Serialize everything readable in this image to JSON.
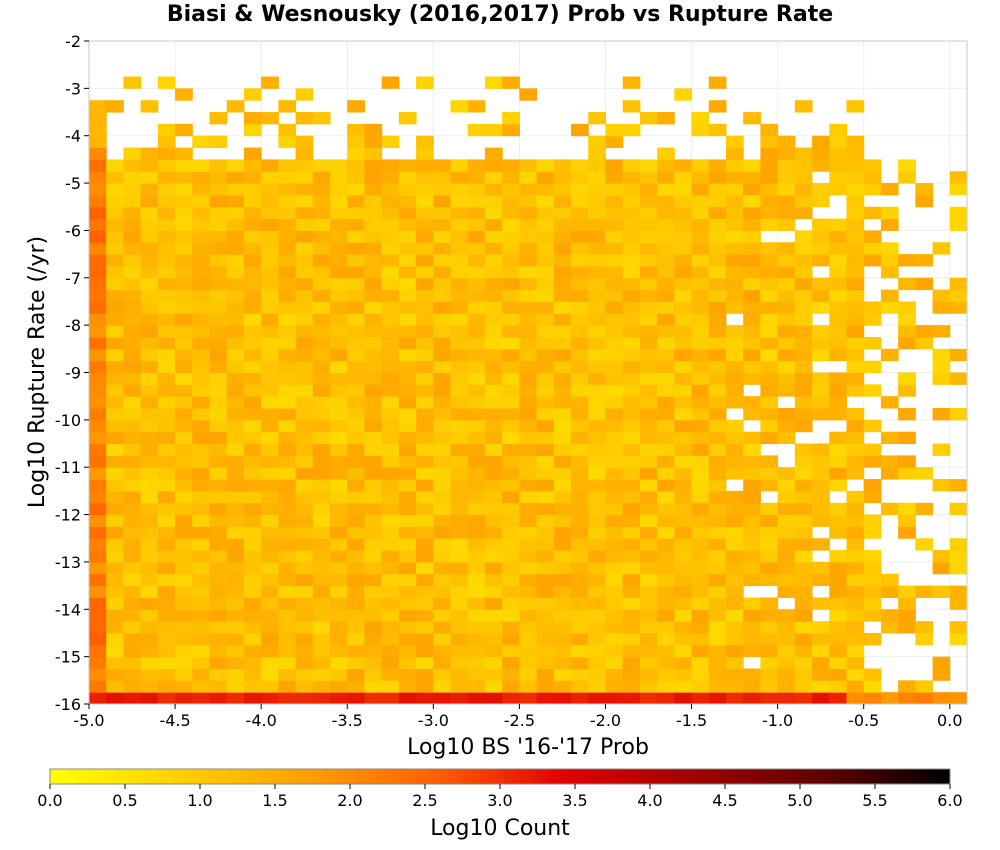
{
  "chart_data": {
    "type": "heatmap",
    "title": "Biasi & Wesnousky (2016,2017) Prob vs Rupture Rate",
    "xlabel": "Log10 BS '16-'17 Prob",
    "ylabel": "Log10 Rupture Rate (/yr)",
    "xlim": [
      -5.0,
      0.1
    ],
    "ylim": [
      -16,
      -2
    ],
    "xticks": [
      -5.0,
      -4.5,
      -4.0,
      -3.5,
      -3.0,
      -2.5,
      -2.0,
      -1.5,
      -1.0,
      -0.5,
      0.0
    ],
    "xtick_labels": [
      "-5.0",
      "-4.5",
      "-4.0",
      "-3.5",
      "-3.0",
      "-2.5",
      "-2.0",
      "-1.5",
      "-1.0",
      "-0.5",
      "0.0"
    ],
    "yticks": [
      -2,
      -3,
      -4,
      -5,
      -6,
      -7,
      -8,
      -9,
      -10,
      -11,
      -12,
      -13,
      -14,
      -15,
      -16
    ],
    "ytick_labels": [
      "-2",
      "-3",
      "-4",
      "-5",
      "-6",
      "-7",
      "-8",
      "-9",
      "-10",
      "-11",
      "-12",
      "-13",
      "-14",
      "-15",
      "-16"
    ],
    "grid": true,
    "bin_width_x": 0.1,
    "bin_width_y": 0.25,
    "colorbar": {
      "label": "Log10 Count",
      "range": [
        0.0,
        6.0
      ],
      "ticks": [
        "0.0",
        "0.5",
        "1.0",
        "1.5",
        "2.0",
        "2.5",
        "3.0",
        "3.5",
        "4.0",
        "4.5",
        "5.0",
        "5.5",
        "6.0"
      ],
      "colormap": [
        "#ffff00",
        "#ffd000",
        "#ffa000",
        "#ff6000",
        "#e00000",
        "#a00000",
        "#600000",
        "#000000"
      ]
    },
    "bulk_summary": "Most bins between x=-4.9 and -0.5, y=-15.9 to -4.5 have Log10 Count about 0.8-1.6",
    "edge_values": {
      "left_column_x": -5.0,
      "left_column_log10_count_range": [
        1.8,
        2.6
      ],
      "bottom_row_y": -16.0,
      "bottom_row_log10_count_range": [
        3.0,
        3.3
      ]
    }
  }
}
